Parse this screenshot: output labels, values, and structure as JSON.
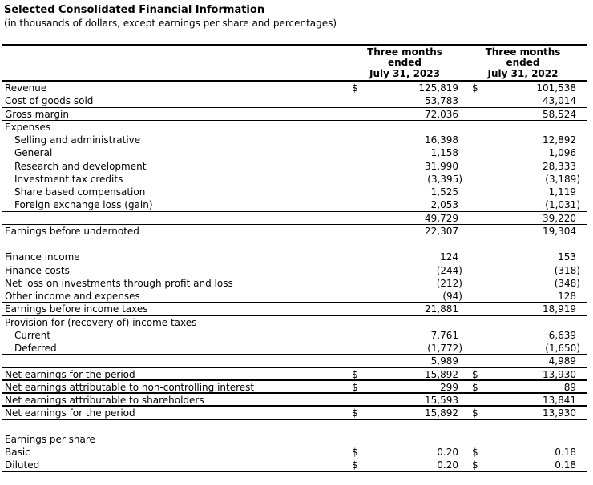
{
  "header": {
    "title": "Selected Consolidated Financial Information",
    "subtitle": "(in thousands of dollars, except earnings per share and percentages)"
  },
  "colors": {
    "text": "#000000",
    "background": "#ffffff",
    "rule": "#000000"
  },
  "table": {
    "currency_symbol": "$",
    "column_headings": [
      "Three months\nended\nJuly 31, 2023",
      "Three months\nended\nJuly 31, 2022"
    ],
    "rows": [
      {
        "label": "Revenue",
        "indent": false,
        "dollar": true,
        "v1": "125,819",
        "v2": "101,538",
        "border": "none"
      },
      {
        "label": "Cost of goods sold",
        "indent": false,
        "dollar": false,
        "v1": "53,783",
        "v2": "43,014",
        "border": "thin"
      },
      {
        "label": "Gross margin",
        "indent": false,
        "dollar": false,
        "v1": "72,036",
        "v2": "58,524",
        "border": "thin"
      },
      {
        "label": "Expenses",
        "indent": false,
        "dollar": false,
        "v1": "",
        "v2": "",
        "border": "none"
      },
      {
        "label": "Selling and administrative",
        "indent": true,
        "dollar": false,
        "v1": "16,398",
        "v2": "12,892",
        "border": "none"
      },
      {
        "label": "General",
        "indent": true,
        "dollar": false,
        "v1": "1,158",
        "v2": "1,096",
        "border": "none"
      },
      {
        "label": "Research and development",
        "indent": true,
        "dollar": false,
        "v1": "31,990",
        "v2": "28,333",
        "border": "none"
      },
      {
        "label": "Investment tax credits",
        "indent": true,
        "dollar": false,
        "v1": "(3,395)",
        "v2": "(3,189)",
        "border": "none"
      },
      {
        "label": "Share based compensation",
        "indent": true,
        "dollar": false,
        "v1": "1,525",
        "v2": "1,119",
        "border": "none"
      },
      {
        "label": "Foreign exchange loss (gain)",
        "indent": true,
        "dollar": false,
        "v1": "2,053",
        "v2": "(1,031)",
        "border": "thin"
      },
      {
        "label": "",
        "indent": false,
        "dollar": false,
        "v1": "49,729",
        "v2": "39,220",
        "border": "thin"
      },
      {
        "label": "Earnings before undernoted",
        "indent": false,
        "dollar": false,
        "v1": "22,307",
        "v2": "19,304",
        "border": "none"
      },
      {
        "label": "",
        "indent": false,
        "dollar": false,
        "v1": "",
        "v2": "",
        "border": "none"
      },
      {
        "label": "Finance income",
        "indent": false,
        "dollar": false,
        "v1": "124",
        "v2": "153",
        "border": "none"
      },
      {
        "label": "Finance costs",
        "indent": false,
        "dollar": false,
        "v1": "(244)",
        "v2": "(318)",
        "border": "none"
      },
      {
        "label": "Net loss on investments through profit and loss",
        "indent": false,
        "dollar": false,
        "v1": "(212)",
        "v2": "(348)",
        "border": "none"
      },
      {
        "label": "Other income and expenses",
        "indent": false,
        "dollar": false,
        "v1": "(94)",
        "v2": "128",
        "border": "thin"
      },
      {
        "label": "Earnings before income taxes",
        "indent": false,
        "dollar": false,
        "v1": "21,881",
        "v2": "18,919",
        "border": "thin"
      },
      {
        "label": "Provision for (recovery of) income taxes",
        "indent": false,
        "dollar": false,
        "v1": "",
        "v2": "",
        "border": "none"
      },
      {
        "label": "Current",
        "indent": true,
        "dollar": false,
        "v1": "7,761",
        "v2": "6,639",
        "border": "none"
      },
      {
        "label": "Deferred",
        "indent": true,
        "dollar": false,
        "v1": "(1,772)",
        "v2": "(1,650)",
        "border": "thin"
      },
      {
        "label": "",
        "indent": false,
        "dollar": false,
        "v1": "5,989",
        "v2": "4,989",
        "border": "thin"
      },
      {
        "label": "Net earnings for the period",
        "indent": false,
        "dollar": true,
        "v1": "15,892",
        "v2": "13,930",
        "border": "thick"
      },
      {
        "label": "Net earnings attributable to non-controlling interest",
        "indent": false,
        "dollar": true,
        "v1": "299",
        "v2": "89",
        "border": "thick"
      },
      {
        "label": "Net earnings attributable to shareholders",
        "indent": false,
        "dollar": false,
        "v1": "15,593",
        "v2": "13,841",
        "border": "thick"
      },
      {
        "label": "Net earnings for the period",
        "indent": false,
        "dollar": true,
        "v1": "15,892",
        "v2": "13,930",
        "border": "thick"
      },
      {
        "label": "",
        "indent": false,
        "dollar": false,
        "v1": "",
        "v2": "",
        "border": "none"
      },
      {
        "label": "Earnings per share",
        "indent": false,
        "dollar": false,
        "v1": "",
        "v2": "",
        "border": "none"
      },
      {
        "label": "Basic",
        "indent": false,
        "dollar": true,
        "v1": "0.20",
        "v2": "0.18",
        "border": "none"
      },
      {
        "label": "Diluted",
        "indent": false,
        "dollar": true,
        "v1": "0.20",
        "v2": "0.18",
        "border": "thick"
      }
    ]
  }
}
